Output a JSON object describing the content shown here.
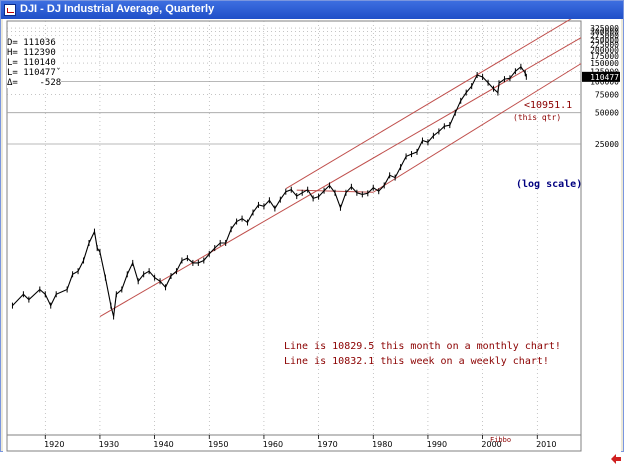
{
  "window": {
    "title": "DJI - DJ Industrial Average, Quarterly"
  },
  "ohlc_panel": [
    "D= 111036",
    "H= 112390",
    "L= 110140",
    "L= 110477ˇ",
    "Δ=    -528"
  ],
  "annotations": {
    "last_value": "<10951.1",
    "this_qtr": "(this qtr)",
    "log_scale": "(log scale)",
    "monthly_note": "Line is 10829.5 this month on a monthly chart!",
    "weekly_note": "Line is 10832.1 this week on a weekly chart!",
    "signature": "Fibbo"
  },
  "colors": {
    "price_bars": "#000000",
    "channel_lines": "#c0504d",
    "annotation_red": "#8b0000",
    "annotation_blue": "#000080",
    "grid": "#a0a0a0",
    "price_tag_bg": "#000000"
  },
  "chart_data": {
    "type": "line",
    "title": "DJI - DJ Industrial Average, Quarterly",
    "ylabel": "",
    "xlabel": "",
    "scale": "log",
    "xlim": [
      1913,
      2018
    ],
    "ylim": [
      40,
      380000
    ],
    "x_ticks": [
      "1920",
      "1930",
      "1940",
      "1950",
      "1960",
      "1970",
      "1980",
      "1990",
      "2000",
      "2010"
    ],
    "y_ticks": [
      {
        "label": "325000",
        "value": 325000
      },
      {
        "label": "300000",
        "value": 300000
      },
      {
        "label": "275000",
        "value": 275000
      },
      {
        "label": "250000",
        "value": 250000
      },
      {
        "label": "225000",
        "value": 225000
      },
      {
        "label": "200000",
        "value": 200000
      },
      {
        "label": "175000",
        "value": 175000
      },
      {
        "label": "150000",
        "value": 150000
      },
      {
        "label": "125000",
        "value": 125000
      },
      {
        "label": "100000",
        "value": 100000
      },
      {
        "label": "75000",
        "value": 75000
      },
      {
        "label": "50000",
        "value": 50000
      },
      {
        "label": "25000",
        "value": 25000
      }
    ],
    "last_price_tag": "110477",
    "grid": true,
    "series": [
      {
        "values_desc": "quarterly close (approximate, chart scale)",
        "x": [
          1914,
          1916,
          1917,
          1919,
          1920,
          1921,
          1922,
          1924,
          1925,
          1926,
          1927,
          1928,
          1929,
          1929.5,
          1930,
          1931,
          1932,
          1932.5,
          1933,
          1934,
          1935,
          1936,
          1937,
          1938,
          1939,
          1940,
          1941,
          1942,
          1943,
          1944,
          1945,
          1946,
          1947,
          1948,
          1949,
          1950,
          1951,
          1952,
          1953,
          1954,
          1955,
          1956,
          1957,
          1958,
          1959,
          1960,
          1961,
          1962,
          1963,
          1964,
          1965,
          1966,
          1967,
          1968,
          1969,
          1970,
          1971,
          1972,
          1973,
          1974,
          1975,
          1976,
          1977,
          1978,
          1979,
          1980,
          1981,
          1982,
          1983,
          1984,
          1985,
          1986,
          1987,
          1988,
          1989,
          1990,
          1991,
          1992,
          1993,
          1994,
          1995,
          1996,
          1997,
          1998,
          1999,
          2000,
          2001,
          2002,
          2002.8,
          2003,
          2004,
          2005,
          2006,
          2007,
          2007.8,
          2008
        ],
        "values": [
          700,
          900,
          800,
          1000,
          900,
          700,
          900,
          1000,
          1400,
          1500,
          1900,
          2800,
          3600,
          2500,
          2300,
          1300,
          700,
          550,
          900,
          1000,
          1400,
          1800,
          1200,
          1400,
          1500,
          1300,
          1200,
          1050,
          1350,
          1500,
          1900,
          2000,
          1800,
          1800,
          1900,
          2200,
          2500,
          2800,
          2800,
          3800,
          4500,
          4800,
          4400,
          5500,
          6500,
          6300,
          7200,
          6000,
          7300,
          8700,
          9100,
          7900,
          8500,
          9100,
          7500,
          7800,
          8900,
          10000,
          8500,
          6100,
          8500,
          9700,
          8500,
          8200,
          8400,
          9500,
          8800,
          10000,
          12500,
          11900,
          15000,
          19000,
          20000,
          21000,
          27000,
          26000,
          30000,
          33000,
          37000,
          38000,
          50000,
          65000,
          78000,
          90000,
          115000,
          110000,
          97000,
          85000,
          78000,
          96000,
          105000,
          107000,
          125000,
          138000,
          120000,
          110477
        ]
      }
    ],
    "channel_lines": [
      {
        "name": "upper",
        "x": [
          1964,
          2018
        ],
        "values": [
          9300,
          455000
        ]
      },
      {
        "name": "middle",
        "x": [
          1930,
          2018
        ],
        "values": [
          550,
          263000
        ]
      },
      {
        "name": "lower",
        "x": [
          1980,
          2018
        ],
        "values": [
          8600,
          148000
        ]
      },
      {
        "name": "start",
        "x": [
          1966,
          1980
        ],
        "values": [
          9000,
          8600
        ]
      }
    ]
  }
}
